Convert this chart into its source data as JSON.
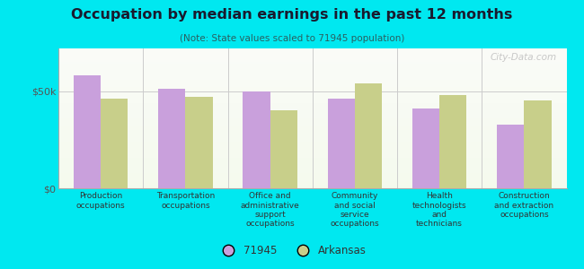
{
  "title": "Occupation by median earnings in the past 12 months",
  "subtitle": "(Note: State values scaled to 71945 population)",
  "categories": [
    "Production\noccupations",
    "Transportation\noccupations",
    "Office and\nadministrative\nsupport\noccupations",
    "Community\nand social\nservice\noccupations",
    "Health\ntechnologists\nand\ntechnicians",
    "Construction\nand extraction\noccupations"
  ],
  "values_71945": [
    58000,
    51000,
    50000,
    46000,
    41000,
    33000
  ],
  "values_arkansas": [
    46000,
    47000,
    40000,
    54000,
    48000,
    45000
  ],
  "color_71945": "#c9a0dc",
  "color_arkansas": "#c8cf8a",
  "yticks": [
    0,
    50000
  ],
  "ytick_labels": [
    "$0",
    "$50k"
  ],
  "ylim": [
    0,
    72000
  ],
  "outer_background": "#00e8f0",
  "legend_71945": "71945",
  "legend_arkansas": "Arkansas",
  "watermark": "City-Data.com",
  "title_color": "#1a1a2e",
  "subtitle_color": "#2a6060",
  "bar_width": 0.32
}
